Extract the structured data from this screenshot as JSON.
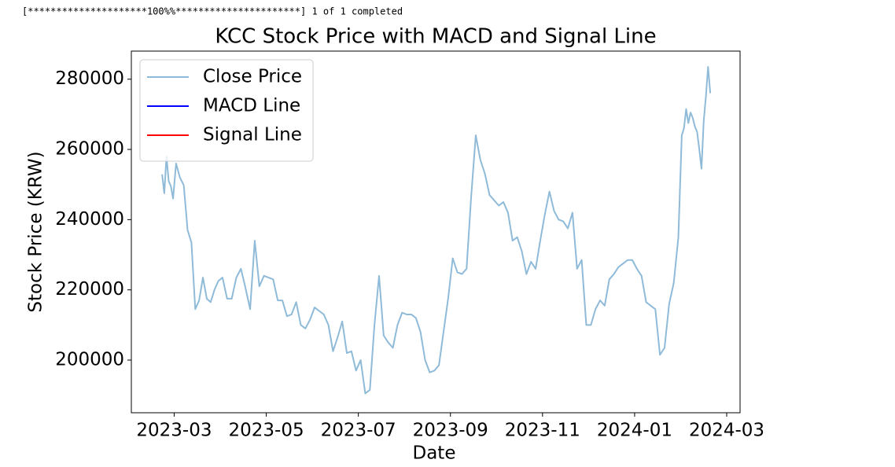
{
  "console_output": "[*********************100%%**********************]  1 of 1 completed",
  "chart_data": {
    "type": "line",
    "title": "KCC Stock Price with MACD and Signal Line",
    "x_label": "Date",
    "y_label": "Stock Price (KRW)",
    "legend": "upper left",
    "grid": false,
    "xlim": [
      "2023-02",
      "2024-03"
    ],
    "xticks": [
      "2023-03",
      "2023-05",
      "2023-07",
      "2023-09",
      "2023-11",
      "2024-01",
      "2024-03"
    ],
    "ylim": [
      185000,
      288000
    ],
    "yticks": [
      200000,
      220000,
      240000,
      260000,
      280000
    ],
    "x": [
      "2023-02",
      "2023-02",
      "2023-02",
      "2023-02",
      "2023-02",
      "2023-02",
      "2023-03",
      "2023-03",
      "2023-03",
      "2023-03",
      "2023-03",
      "2023-03",
      "2023-03",
      "2023-03",
      "2023-03",
      "2023-03",
      "2023-03",
      "2023-03",
      "2023-04",
      "2023-04",
      "2023-04",
      "2023-04",
      "2023-04",
      "2023-04",
      "2023-04",
      "2023-04",
      "2023-04",
      "2023-04",
      "2023-05",
      "2023-05",
      "2023-05",
      "2023-05",
      "2023-05",
      "2023-05",
      "2023-05",
      "2023-05",
      "2023-05",
      "2023-05",
      "2023-06",
      "2023-06",
      "2023-06",
      "2023-06",
      "2023-06",
      "2023-06",
      "2023-06",
      "2023-06",
      "2023-06",
      "2023-06",
      "2023-07",
      "2023-07",
      "2023-07",
      "2023-07",
      "2023-07",
      "2023-07",
      "2023-07",
      "2023-07",
      "2023-07",
      "2023-07",
      "2023-08",
      "2023-08",
      "2023-08",
      "2023-08",
      "2023-08",
      "2023-08",
      "2023-08",
      "2023-08",
      "2023-08",
      "2023-08",
      "2023-09",
      "2023-09",
      "2023-09",
      "2023-09",
      "2023-09",
      "2023-09",
      "2023-09",
      "2023-09",
      "2023-09",
      "2023-09",
      "2023-10",
      "2023-10",
      "2023-10",
      "2023-10",
      "2023-10",
      "2023-10",
      "2023-10",
      "2023-10",
      "2023-10",
      "2023-10",
      "2023-11",
      "2023-11",
      "2023-11",
      "2023-11",
      "2023-11",
      "2023-11",
      "2023-11",
      "2023-11",
      "2023-11",
      "2023-11",
      "2023-12",
      "2023-12",
      "2023-12",
      "2023-12",
      "2023-12",
      "2023-12",
      "2023-12",
      "2023-12",
      "2023-12",
      "2023-12",
      "2024-01",
      "2024-01",
      "2024-01",
      "2024-01",
      "2024-01",
      "2024-01",
      "2024-01",
      "2024-01",
      "2024-01",
      "2024-01",
      "2024-02",
      "2024-02",
      "2024-02",
      "2024-02",
      "2024-02",
      "2024-02",
      "2024-02",
      "2024-02",
      "2024-02",
      "2024-02",
      "2024-02",
      "2024-02",
      "2024-02",
      "2024-02"
    ],
    "series": [
      {
        "name": "Close Price",
        "color": "#1f77b4",
        "opacity": 0.5,
        "values": [
          252900,
          247500,
          258000,
          251000,
          249500,
          246000,
          256000,
          252000,
          249800,
          237000,
          233500,
          214500,
          217000,
          223500,
          217500,
          216500,
          220000,
          222500,
          223500,
          217500,
          217500,
          223500,
          226000,
          220500,
          214500,
          234000,
          221000,
          224000,
          223500,
          223000,
          217000,
          217000,
          212500,
          213000,
          216500,
          210000,
          209000,
          211500,
          215000,
          214000,
          213000,
          210000,
          202500,
          206500,
          211000,
          202000,
          202500,
          197000,
          200000,
          190500,
          191500,
          210000,
          224000,
          207000,
          205000,
          203500,
          210000,
          213500,
          213000,
          213000,
          212000,
          208000,
          200000,
          196500,
          197000,
          198500,
          208000,
          217500,
          229000,
          225000,
          224500,
          226000,
          246500,
          264000,
          257000,
          253000,
          247000,
          245500,
          244000,
          245000,
          242000,
          234000,
          235000,
          231000,
          224500,
          228000,
          226000,
          234000,
          241500,
          248000,
          242500,
          240000,
          239500,
          237500,
          242000,
          226000,
          228500,
          210000,
          210000,
          214500,
          217000,
          215500,
          223000,
          224500,
          226500,
          227500,
          228500,
          228500,
          226000,
          224000,
          216500,
          215500,
          214500,
          201500,
          203500,
          216000,
          222000,
          235000,
          264000,
          266000,
          271500,
          267500,
          270500,
          269000,
          266500,
          265000,
          260000,
          254500,
          268000,
          275000,
          283500,
          276000
        ]
      },
      {
        "name": "MACD Line",
        "color": "#0000ff"
      },
      {
        "name": "Signal Line",
        "color": "#ff0000"
      }
    ]
  }
}
